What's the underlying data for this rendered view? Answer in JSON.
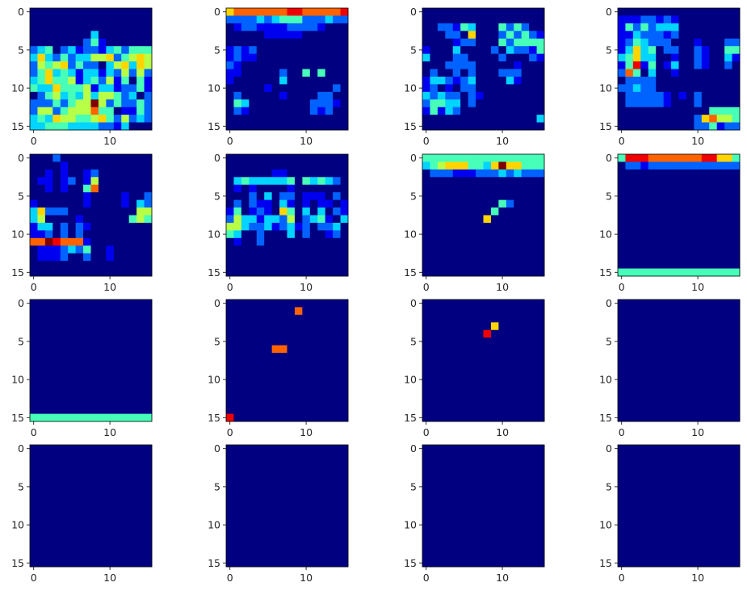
{
  "chart_data": {
    "type": "heatmap",
    "colormap": "jet",
    "grid_rows": 4,
    "grid_cols": 4,
    "cells_per_axis": 16,
    "xlim": [
      -0.5,
      15.5
    ],
    "ylim": [
      15.5,
      -0.5
    ],
    "xticks": [
      0,
      10
    ],
    "yticks": [
      0,
      5,
      10,
      15
    ],
    "grid": false,
    "value_range": [
      0,
      9
    ],
    "panels": [
      {
        "values": [
          "0000000000000000",
          "0000000000000000",
          "0000000000000000",
          "0000000030000000",
          "0000000241000000",
          "2340231221342444",
          "3632423355624565",
          "2545624220356365",
          "2463431331325252",
          "3464451342514041",
          "4336444513312241",
          "0245343535542302",
          "2224245595242242",
          "2552455574401142",
          "3436554456425232",
          "3344433332213000"
        ]
      },
      {
        "values": [
          "6777777788777778",
          "2222323444222322",
          "0122111122221000",
          "0000011111000000",
          "0000000000000000",
          "1212000000000000",
          "1211000000000000",
          "2100000000000000",
          "1100000200404000",
          "1000000300000000",
          "0000010000000020",
          "0200000100002200",
          "0430000000022210",
          "0210000000021200",
          "0000000000000000",
          "0000000000000000"
        ]
      },
      {
        "values": [
          "0000000000000000",
          "0000000000000000",
          "0022143000424200",
          "0002206000242421",
          "0000122000424444",
          "1000300002032214",
          "3000220000200021",
          "0002222000001000",
          "0200202000222000",
          "1332123000031000",
          "1201022000000000",
          "3232202100000000",
          "2443302000000000",
          "1413200000000000",
          "0000000000000003",
          "0000000000000000"
        ]
      },
      {
        "values": [
          "0000000000000000",
          "1112212100000000",
          "1424233300000000",
          "1132221200000000",
          "1243222000100022",
          "1363402200210044",
          "3463300100210031",
          "1481401300210020",
          "2740300100000000",
          "0222200000000000",
          "2232200000000000",
          "0222221010200000",
          "0222221000200000",
          "0000000000004444",
          "0000000000267554",
          "0000000000224122"
        ]
      },
      {
        "values": [
          "0002000000000000",
          "0000100000000000",
          "0010100120000000",
          "0110120150000000",
          "0010100470000000",
          "0000000100001002",
          "1000000100001032",
          "3622200000000055",
          "3500001000000454",
          "1330202100000000",
          "1120202000000000",
          "7798777100000000",
          "0111232400100000",
          "0111200200100000",
          "0000000000000000",
          "0000000000000000"
        ]
      },
      {
        "values": [
          "0000000000000000",
          "0000000000000000",
          "0000001100000000",
          "0343333340434320",
          "0101000010000000",
          "0002030220111020",
          "0202110310101101",
          "1401210640303021",
          "2533133250234103",
          "5532231231202230",
          "4300200030200120",
          "0100200000000000",
          "0000000000000000",
          "0000000000000000",
          "0000000000000000",
          "0000000000000000"
        ]
      },
      {
        "values": [
          "4444444444444444",
          "3456664436966444",
          "0222111222323222",
          "0000000000000000",
          "0000000000000000",
          "0000000000000000",
          "0000000000420000",
          "0000000004000000",
          "0000000060000000",
          "0000000000000000",
          "0000000000000000",
          "0000000000000000",
          "0000000000000000",
          "0000000000000000",
          "0000000000000000",
          "0000000000000000"
        ]
      },
      {
        "values": [
          "4888777777788664",
          "0221222222222222",
          "0000000000000000",
          "0000000000000000",
          "0000000000000000",
          "0000000000000000",
          "0000000000000000",
          "0000000000000000",
          "0000000000000000",
          "0000000000000000",
          "0000000000000000",
          "0000000000000000",
          "0000000000000000",
          "0000000000000000",
          "0000000000000000",
          "4444444444444444"
        ]
      },
      {
        "values": [
          "0000000000000000",
          "0000000000000000",
          "0000000000000000",
          "0000000000000000",
          "0000000000000000",
          "0000000000000000",
          "0000000000000000",
          "0000000000000000",
          "0000000000000000",
          "0000000000000000",
          "0000000000000000",
          "0000000000000000",
          "0000000000000000",
          "0000000000000000",
          "0000000000000000",
          "4444444444444444"
        ]
      },
      {
        "values": [
          "0000000000000000",
          "0000000007000000",
          "0000000000000000",
          "0000000000000000",
          "0000000000000000",
          "0000000000000000",
          "0000007700000000",
          "0000000000000000",
          "0000000000000000",
          "0000000000000000",
          "0000000000000000",
          "0000000000000000",
          "0000000000000000",
          "0000000000000000",
          "0000000000000000",
          "8000000000000000"
        ]
      },
      {
        "values": [
          "0000000000000000",
          "0000000000000000",
          "0000000000000000",
          "0000000006000000",
          "0000000080000000",
          "0000000000000000",
          "0000000000000000",
          "0000000000000000",
          "0000000000000000",
          "0000000000000000",
          "0000000000000000",
          "0000000000000000",
          "0000000000000000",
          "0000000000000000",
          "0000000000000000",
          "0000000000000000"
        ]
      },
      {
        "values": [
          "0000000000000000",
          "0000000000000000",
          "0000000000000000",
          "0000000000000000",
          "0000000000000000",
          "0000000000000000",
          "0000000000000000",
          "0000000000000000",
          "0000000000000000",
          "0000000000000000",
          "0000000000000000",
          "0000000000000000",
          "0000000000000000",
          "0000000000000000",
          "0000000000000000",
          "0000000000000000"
        ]
      },
      {
        "values": [
          "0000000000000000",
          "0000000000000000",
          "0000000000000000",
          "0000000000000000",
          "0000000000000000",
          "0000000000000000",
          "0000000000000000",
          "0000000000000000",
          "0000000000000000",
          "0000000000000000",
          "0000000000000000",
          "0000000000000000",
          "0000000000000000",
          "0000000000000000",
          "0000000000000000",
          "0000000000000000"
        ]
      },
      {
        "values": [
          "0000000000000000",
          "0000000000000000",
          "0000000000000000",
          "0000000000000000",
          "0000000000000000",
          "0000000000000000",
          "0000000000000000",
          "0000000000000000",
          "0000000000000000",
          "0000000000000000",
          "0000000000000000",
          "0000000000000000",
          "0000000000000000",
          "0000000000000000",
          "0000000000000000",
          "0000000000000000"
        ]
      },
      {
        "values": [
          "0000000000000000",
          "0000000000000000",
          "0000000000000000",
          "0000000000000000",
          "0000000000000000",
          "0000000000000000",
          "0000000000000000",
          "0000000000000000",
          "0000000000000000",
          "0000000000000000",
          "0000000000000000",
          "0000000000000000",
          "0000000000000000",
          "0000000000000000",
          "0000000000000000",
          "0000000000000000"
        ]
      },
      {
        "values": [
          "0000000000000000",
          "0000000000000000",
          "0000000000000000",
          "0000000000000000",
          "0000000000000000",
          "0000000000000000",
          "0000000000000000",
          "0000000000000000",
          "0000000000000000",
          "0000000000000000",
          "0000000000000000",
          "0000000000000000",
          "0000000000000000",
          "0000000000000000",
          "0000000000000000",
          "0000000000000000"
        ]
      }
    ]
  }
}
